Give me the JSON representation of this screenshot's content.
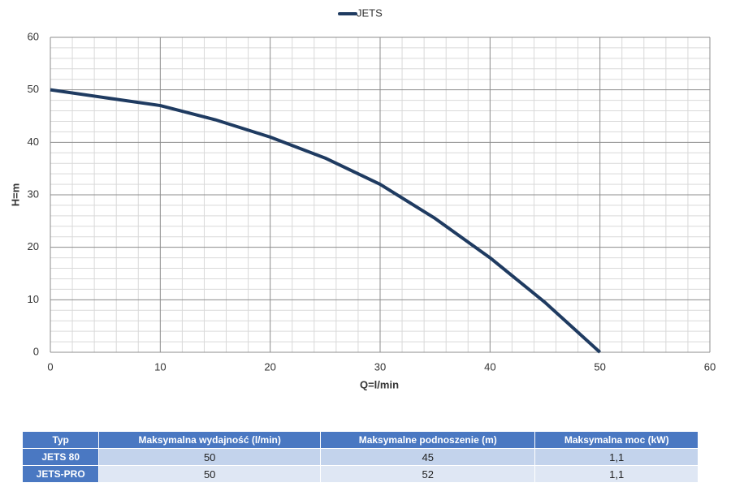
{
  "chart_data": {
    "type": "line",
    "legend": "top",
    "x": [
      0,
      5,
      10,
      15,
      20,
      25,
      30,
      35,
      40,
      45,
      50
    ],
    "series": [
      {
        "name": "JETS",
        "color": "#1f3b61",
        "values": [
          50,
          48.5,
          47,
          44.3,
          41,
          37,
          32,
          25.5,
          18,
          9.5,
          0
        ]
      }
    ],
    "xlabel": "Q=l/min",
    "ylabel": "H=m",
    "xlim": [
      0,
      60
    ],
    "ylim": [
      0,
      60
    ],
    "xticks": [
      0,
      10,
      20,
      30,
      40,
      50,
      60
    ],
    "yticks": [
      0,
      10,
      20,
      30,
      40,
      50,
      60
    ],
    "xminorticks": [
      2,
      4,
      6,
      8,
      12,
      14,
      16,
      18,
      22,
      24,
      26,
      28,
      32,
      34,
      36,
      38,
      42,
      44,
      46,
      48,
      52,
      54,
      56,
      58
    ],
    "yminorticks": [
      2,
      4,
      6,
      8,
      12,
      14,
      16,
      18,
      22,
      24,
      26,
      28,
      32,
      34,
      36,
      38,
      42,
      44,
      46,
      48,
      52,
      54,
      56,
      58
    ],
    "grid": true
  },
  "table": {
    "header": [
      "Typ",
      "Maksymalna wydajność (l/min)",
      "Maksymalne podnoszenie (m)",
      "Maksymalna moc (kW)"
    ],
    "rows": [
      [
        "JETS 80",
        "50",
        "45",
        "1,1"
      ],
      [
        "JETS-PRO",
        "50",
        "52",
        "1,1"
      ]
    ]
  }
}
